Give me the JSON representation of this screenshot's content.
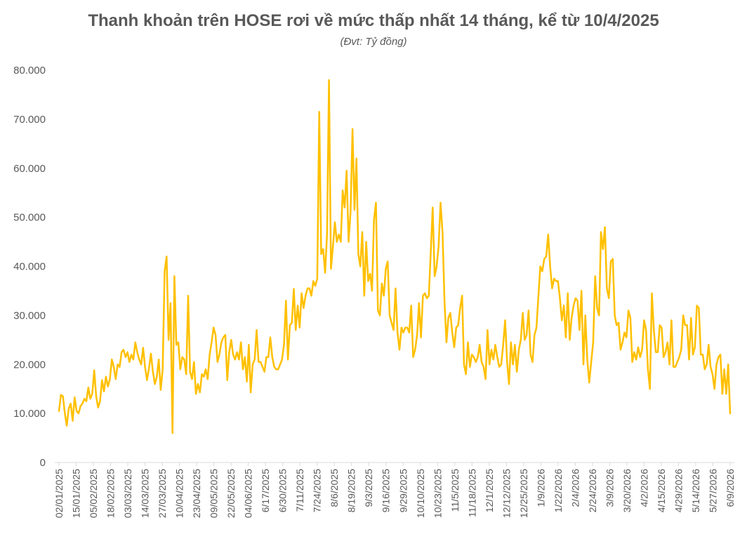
{
  "chart_data": {
    "type": "line",
    "title": "Thanh khoản trên HOSE rơi về mức thấp nhất 14 tháng, kể từ 10/4/2025",
    "subtitle": "(Đvt: Tỷ đồng)",
    "xlabel": "",
    "ylabel": "",
    "ylim": [
      0,
      80000
    ],
    "y_ticks": [
      "0",
      "10.000",
      "20.000",
      "30.000",
      "40.000",
      "50.000",
      "60.000",
      "70.000",
      "80.000"
    ],
    "x_tick_labels": [
      "02/01/2025",
      "15/01/2025",
      "05/02/2025",
      "18/02/2025",
      "03/03/2025",
      "14/03/2025",
      "27/03/2025",
      "10/04/2025",
      "23/04/2025",
      "09/05/2025",
      "22/05/2025",
      "04/06/2025",
      "6/17/2025",
      "6/30/2025",
      "7/11/2025",
      "7/24/2025",
      "8/6/2025",
      "8/19/2025",
      "9/3/2025",
      "9/16/2025",
      "9/29/2025",
      "10/10/2025",
      "10/23/2025",
      "11/5/2025",
      "11/18/2025",
      "12/1/2025",
      "12/12/2025",
      "12/25/2025",
      "1/9/2026",
      "1/22/2026",
      "2/4/2026",
      "2/24/2026",
      "3/9/2026",
      "3/20/2026",
      "4/2/2026",
      "4/15/2026",
      "4/29/2026",
      "5/14/2026",
      "5/27/2026",
      "6/9/2026"
    ],
    "grid": false,
    "legend": "none",
    "line_color": "#FFC000",
    "series": [
      {
        "values": [
          10500,
          13800,
          13500,
          10000,
          7500,
          11000,
          12000,
          8500,
          13300,
          10500,
          10000,
          11500,
          12000,
          13000,
          12500,
          15300,
          13000,
          14000,
          18800,
          13500,
          11200,
          12500,
          16800,
          14500,
          17500,
          15500,
          17000,
          21000,
          19500,
          17000,
          20000,
          19500,
          22500,
          23000,
          21500,
          22500,
          20500,
          22000,
          21000,
          24500,
          22500,
          21000,
          20000,
          23400,
          19500,
          16800,
          19200,
          22200,
          18500,
          16000,
          17500,
          21000,
          14800,
          19000,
          39000,
          42000,
          25000,
          32500,
          6000,
          38000,
          24000,
          24500,
          19000,
          21500,
          21000,
          18000,
          34000,
          18500,
          17000,
          20500,
          14000,
          16000,
          14300,
          18000,
          17500,
          19000,
          17000,
          22000,
          24500,
          27500,
          26000,
          20500,
          22000,
          24500,
          25500,
          26000,
          16800,
          22500,
          25000,
          22000,
          21000,
          22500,
          21000,
          24500,
          19000,
          21500,
          16500,
          24000,
          14300,
          20000,
          21000,
          27000,
          20500,
          20500,
          19500,
          18500,
          21500,
          21500,
          25500,
          21500,
          19500,
          19000,
          19000,
          20000,
          21000,
          24000,
          33000,
          21000,
          28000,
          28500,
          35400,
          27000,
          32000,
          27500,
          34500,
          31500,
          34000,
          35500,
          35500,
          34000,
          37000,
          36000,
          37500,
          71500,
          42500,
          43500,
          38700,
          46500,
          78000,
          39500,
          44000,
          49000,
          45000,
          46500,
          45000,
          55500,
          52000,
          59500,
          45000,
          51000,
          68000,
          51500,
          62000,
          42500,
          40000,
          47000,
          34000,
          45000,
          37000,
          38500,
          35000,
          49500,
          53000,
          31000,
          30000,
          36500,
          34000,
          39500,
          41000,
          30000,
          28500,
          27000,
          35500,
          26500,
          23000,
          27500,
          26500,
          27500,
          27500,
          26500,
          32000,
          21500,
          23000,
          26000,
          32500,
          25500,
          34000,
          34500,
          33500,
          34000,
          43000,
          52000,
          38000,
          40000,
          44000,
          53000,
          47000,
          33000,
          24500,
          29500,
          30500,
          26500,
          23500,
          27500,
          28000,
          31500,
          34000,
          20000,
          18000,
          24500,
          19500,
          22000,
          21500,
          20500,
          21500,
          24000,
          20500,
          19500,
          17000,
          27000,
          20000,
          23000,
          21000,
          24000,
          21500,
          19500,
          20000,
          24000,
          29000,
          20500,
          16000,
          24500,
          20000,
          24000,
          18500,
          23000,
          25000,
          30500,
          25000,
          26000,
          31000,
          22000,
          20500,
          26000,
          27500,
          34000,
          40000,
          39000,
          41500,
          42000,
          46500,
          40000,
          35500,
          37500,
          37000,
          37000,
          33500,
          29000,
          32000,
          25500,
          34500,
          25000,
          29500,
          32000,
          33500,
          33000,
          27000,
          35000,
          20000,
          30000,
          21000,
          16300,
          20500,
          24500,
          38000,
          31500,
          30000,
          47000,
          43500,
          48000,
          35500,
          33500,
          41000,
          41500,
          30000,
          28000,
          28500,
          23000,
          24500,
          26500,
          25500,
          31000,
          29500,
          20500,
          22500,
          21000,
          23500,
          21500,
          23000,
          29000,
          27000,
          19000,
          15000,
          34500,
          27000,
          22500,
          22500,
          28000,
          27500,
          21500,
          22500,
          24500,
          20000,
          29000,
          19500,
          19500,
          20500,
          21500,
          23000,
          30000,
          28000,
          28000,
          21000,
          29500,
          22000,
          23500,
          32000,
          31500,
          22000,
          22000,
          19000,
          20000,
          24000,
          19500,
          18000,
          15000,
          20000,
          21500,
          22000,
          14000,
          19000,
          14000,
          20000,
          10000
        ]
      }
    ]
  }
}
